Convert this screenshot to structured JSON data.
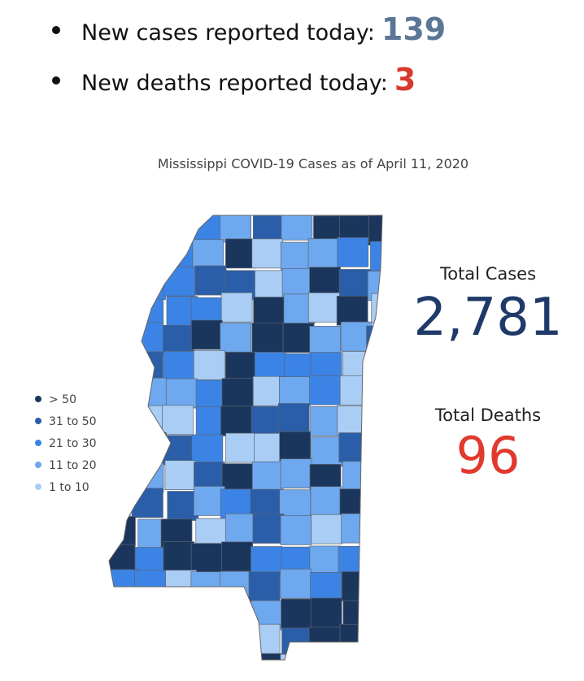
{
  "bullets": [
    {
      "label": "New cases reported today:",
      "value": "139"
    },
    {
      "label": "New deaths reported today:",
      "value": "3"
    }
  ],
  "map": {
    "title": "Mississippi COVID-19 Cases as of April 11, 2020",
    "legend": [
      {
        "label": "> 50",
        "color": "#1b365d"
      },
      {
        "label": "31 to 50",
        "color": "#2a5ea8"
      },
      {
        "label": "21 to 30",
        "color": "#3b84e6"
      },
      {
        "label": "11 to 20",
        "color": "#6ea8ee"
      },
      {
        "label": "1 to 10",
        "color": "#aacdf5"
      }
    ]
  },
  "totals": {
    "cases": {
      "label": "Total Cases",
      "value": "2,781"
    },
    "deaths": {
      "label": "Total Deaths",
      "value": "96"
    }
  }
}
